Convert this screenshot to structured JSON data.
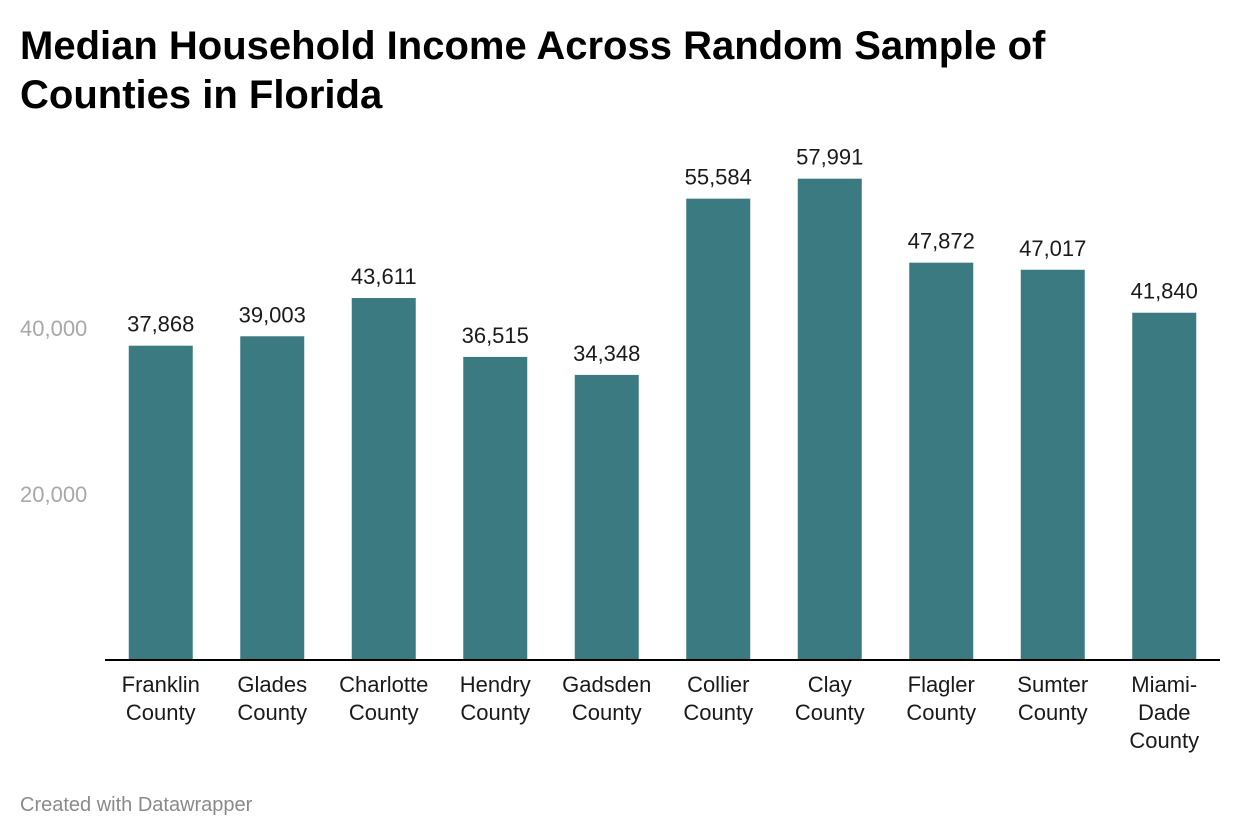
{
  "header": {
    "title": "Median Household Income Across Random Sample of Counties in Florida"
  },
  "footer": {
    "credit": "Created with Datawrapper"
  },
  "chart_data": {
    "type": "bar",
    "title": "Median Household Income Across Random Sample of Counties in Florida",
    "categories": [
      [
        "Franklin",
        "County"
      ],
      [
        "Glades",
        "County"
      ],
      [
        "Charlotte",
        "County"
      ],
      [
        "Hendry",
        "County"
      ],
      [
        "Gadsden",
        "County"
      ],
      [
        "Collier",
        "County"
      ],
      [
        "Clay",
        "County"
      ],
      [
        "Flagler",
        "County"
      ],
      [
        "Sumter",
        "County"
      ],
      [
        "Miami-",
        "Dade",
        "County"
      ]
    ],
    "values": [
      37868,
      39003,
      43611,
      36515,
      34348,
      55584,
      57991,
      47872,
      47017,
      41840
    ],
    "value_labels": [
      "37,868",
      "39,003",
      "43,611",
      "36,515",
      "34,348",
      "55,584",
      "57,991",
      "47,872",
      "47,017",
      "41,840"
    ],
    "y_ticks": [
      20000,
      40000
    ],
    "y_tick_labels": [
      "20,000",
      "40,000"
    ],
    "ylim": [
      0,
      60000
    ],
    "grid": false,
    "colors": {
      "bar": "#3b7a80",
      "axis": "#000000",
      "tick_label": "#a8a8a8",
      "label": "#1a1a1a"
    }
  }
}
